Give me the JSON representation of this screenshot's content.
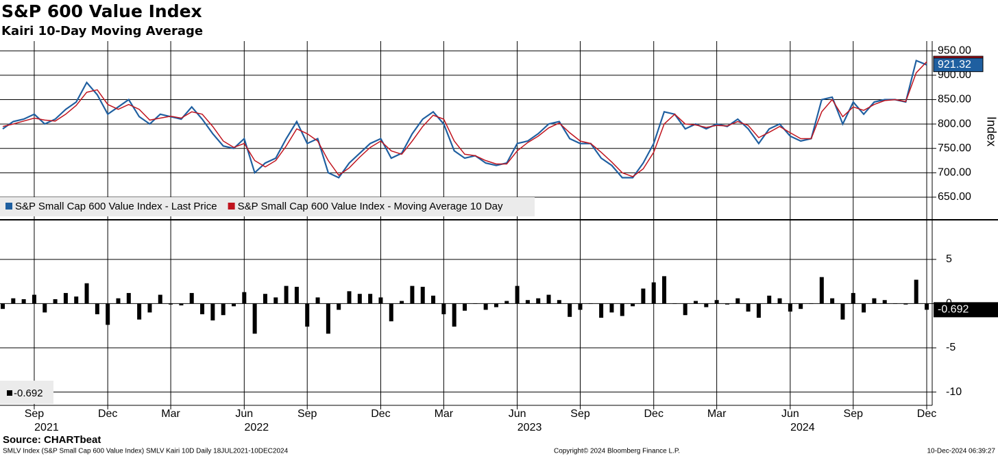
{
  "chart_data": [
    {
      "type": "line",
      "title": "S&P 600 Value Index",
      "subtitle": "Kairi 10-Day Moving Average",
      "y_axis_label": "Index",
      "ylim": [
        605,
        970
      ],
      "yticks": [
        {
          "value": 650,
          "label": "650.00"
        },
        {
          "value": 700,
          "label": "700.00"
        },
        {
          "value": 750,
          "label": "750.00"
        },
        {
          "value": 800,
          "label": "800.00"
        },
        {
          "value": 850,
          "label": "850.00"
        },
        {
          "value": 900,
          "label": "900.00"
        },
        {
          "value": 950,
          "label": "950.00"
        }
      ],
      "grid": true,
      "legend": "bottom-left",
      "series": [
        {
          "name": "S&P Small Cap 600 Value Index - Last Price",
          "color": "#1f5fa0",
          "values": [
            790,
            805,
            810,
            820,
            800,
            810,
            830,
            845,
            885,
            860,
            820,
            835,
            850,
            815,
            800,
            820,
            815,
            810,
            835,
            810,
            780,
            755,
            750,
            770,
            700,
            720,
            730,
            770,
            805,
            760,
            770,
            700,
            690,
            720,
            740,
            760,
            770,
            730,
            740,
            780,
            810,
            825,
            800,
            745,
            730,
            735,
            720,
            715,
            720,
            760,
            765,
            780,
            800,
            805,
            770,
            760,
            760,
            730,
            715,
            690,
            690,
            720,
            760,
            825,
            820,
            790,
            800,
            790,
            800,
            795,
            810,
            790,
            760,
            790,
            800,
            775,
            765,
            770,
            850,
            855,
            800,
            845,
            820,
            845,
            850,
            850,
            845,
            930,
            921.32
          ]
        },
        {
          "name": "S&P Small Cap 600 Value Index - Moving Average 10 Day",
          "color": "#c0141e",
          "values": [
            795,
            800,
            806,
            812,
            808,
            806,
            820,
            838,
            865,
            870,
            840,
            830,
            840,
            830,
            808,
            812,
            816,
            812,
            825,
            820,
            795,
            765,
            752,
            760,
            725,
            712,
            725,
            755,
            790,
            780,
            765,
            725,
            695,
            710,
            732,
            752,
            765,
            745,
            738,
            765,
            795,
            818,
            810,
            765,
            738,
            735,
            725,
            718,
            718,
            745,
            762,
            775,
            792,
            802,
            782,
            765,
            760,
            742,
            722,
            700,
            692,
            708,
            742,
            800,
            820,
            800,
            798,
            793,
            797,
            796,
            805,
            797,
            772,
            783,
            795,
            782,
            770,
            770,
            825,
            850,
            815,
            835,
            828,
            840,
            848,
            850,
            846,
            905,
            927.74
          ]
        }
      ]
    },
    {
      "type": "bar",
      "ylim": [
        -11.5,
        9.4
      ],
      "yticks": [
        -10,
        -5,
        0,
        5
      ],
      "grid": true,
      "color": "#000000",
      "categories": [
        null,
        null,
        null,
        "Sep",
        null,
        null,
        null,
        null,
        null,
        null,
        "Dec",
        null,
        null,
        null,
        null,
        null,
        "Mar",
        null,
        null,
        null,
        null,
        null,
        null,
        "Jun",
        null,
        null,
        null,
        null,
        null,
        "Sep",
        null,
        null,
        null,
        null,
        null,
        null,
        "Dec",
        null,
        null,
        null,
        null,
        null,
        "Mar",
        null,
        null,
        null,
        null,
        null,
        null,
        "Jun",
        null,
        null,
        null,
        null,
        null,
        "Sep",
        null,
        null,
        null,
        null,
        null,
        null,
        "Dec",
        null,
        null,
        null,
        null,
        null,
        "Mar",
        null,
        null,
        null,
        null,
        null,
        null,
        "Jun",
        null,
        null,
        null,
        null,
        null,
        "Sep",
        null,
        null,
        null,
        null,
        null,
        null,
        "Dec"
      ],
      "year_labels": [
        null,
        null,
        null,
        "2021",
        null,
        null,
        null,
        null,
        null,
        null,
        null,
        null,
        null,
        null,
        null,
        null,
        null,
        null,
        null,
        null,
        null,
        null,
        null,
        "2022",
        null,
        null,
        null,
        null,
        null,
        null,
        null,
        null,
        null,
        null,
        null,
        null,
        null,
        null,
        null,
        null,
        null,
        null,
        null,
        null,
        null,
        null,
        null,
        null,
        null,
        "2023",
        null,
        null,
        null,
        null,
        null,
        null,
        null,
        null,
        null,
        null,
        null,
        null,
        null,
        null,
        null,
        null,
        null,
        null,
        null,
        null,
        null,
        null,
        null,
        null,
        null,
        "2024",
        null,
        null,
        null,
        null,
        null,
        null,
        null,
        null,
        null,
        null,
        null,
        null,
        null
      ],
      "values": [
        -0.6,
        0.6,
        0.5,
        1.0,
        -1.0,
        0.5,
        1.2,
        0.8,
        2.3,
        -1.2,
        -2.4,
        0.6,
        1.2,
        -1.8,
        -1.0,
        1.0,
        -0.1,
        -0.2,
        1.2,
        -1.2,
        -1.9,
        -1.3,
        -0.3,
        1.3,
        -3.4,
        1.1,
        0.7,
        2.0,
        1.9,
        -2.6,
        0.7,
        -3.4,
        -0.7,
        1.4,
        1.1,
        1.1,
        0.7,
        -2.0,
        0.3,
        2.0,
        1.9,
        0.9,
        -1.2,
        -2.6,
        -0.8,
        0,
        -0.7,
        -0.4,
        0.3,
        2.0,
        0.4,
        0.6,
        1.0,
        0.4,
        -1.5,
        -0.7,
        0,
        -1.6,
        -1.0,
        -1.4,
        -0.3,
        1.7,
        2.4,
        3.1,
        0,
        -1.3,
        0.3,
        -0.4,
        0.4,
        -0.1,
        0.6,
        -0.9,
        -1.6,
        0.9,
        0.6,
        -0.9,
        -0.6,
        0,
        3.0,
        0.6,
        -1.8,
        1.2,
        -1.0,
        0.6,
        0.4,
        0,
        -0.1,
        2.7,
        -0.692
      ]
    }
  ],
  "footer": {
    "source": "Source: CHARTbeat",
    "description": "SMLV Index (S&P Small Cap 600 Value Index) SMLV Kairi 10D  Daily 18JUL2021-10DEC2024",
    "copyright": "Copyright© 2024 Bloomberg Finance L.P.",
    "timestamp": "10-Dec-2024 06:39:27"
  }
}
